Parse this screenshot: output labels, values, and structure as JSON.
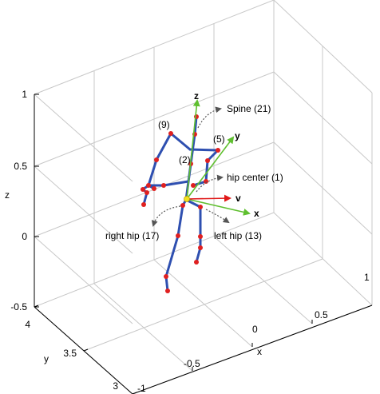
{
  "axes": {
    "z_label": "z",
    "y_label": "y",
    "x_label": "x",
    "z_ticks": [
      "1",
      "0.5",
      "0",
      "-0.5"
    ],
    "y_ticks": [
      "4",
      "3.5",
      "3"
    ],
    "x_ticks": [
      "-1",
      "-0.5",
      "0",
      "0.5",
      "1"
    ]
  },
  "vectors": {
    "z": "z",
    "y": "y",
    "v": "v",
    "x": "x"
  },
  "joint_labels": {
    "j9": "(9)",
    "j5": "(5)",
    "j2": "(2)"
  },
  "annotations": {
    "spine": "Spine (21)",
    "hip_center": "hip center (1)",
    "right_hip": "right hip (17)",
    "left_hip": "left hip (13)"
  },
  "colors": {
    "skeleton": "#2e4fb0",
    "joint": "#e02020",
    "grid": "#c8c8c8",
    "frame": "#000000",
    "vec_z": "#5fbf2f",
    "vec_y": "#5fbf2f",
    "vec_x": "#5fbf2f",
    "vec_v": "#e01818",
    "anno_arrow": "#555555"
  }
}
